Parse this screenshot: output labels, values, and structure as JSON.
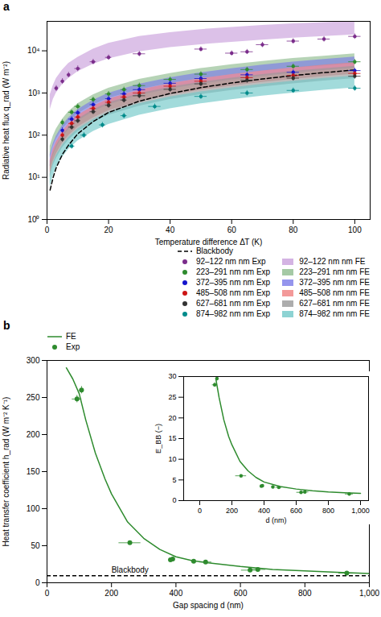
{
  "chart_data": [
    {
      "type": "scatter",
      "title": "a",
      "xlabel": "Temperature difference ΔΤ (K)",
      "ylabel": "Radiative heat flux q_rad (W m⁻²)",
      "log": "y",
      "grid": false,
      "legend": "lower right",
      "xlim": [
        0,
        105
      ],
      "xticks": [
        0,
        20,
        40,
        60,
        80,
        100
      ],
      "ylim": [
        1,
        50000
      ],
      "yticks": [
        {
          "value": 1,
          "label": "10⁰"
        },
        {
          "value": 10,
          "label": "10¹"
        },
        {
          "value": 100,
          "label": "10²"
        },
        {
          "value": 1000,
          "label": "10³"
        },
        {
          "value": 10000,
          "label": "10⁴"
        }
      ],
      "series": [
        {
          "name": "Blackbody",
          "type": "line",
          "line_style": "dashed",
          "color": "#000000",
          "x": [
            1,
            2,
            3,
            5,
            7,
            10,
            15,
            20,
            30,
            40,
            50,
            60,
            70,
            80,
            90,
            100
          ],
          "values": [
            5,
            10,
            17,
            35,
            58,
            108,
            210,
            345,
            640,
            975,
            1340,
            1730,
            2150,
            2590,
            3040,
            3520
          ]
        },
        {
          "name": "92–122 nm nm Exp",
          "type": "scatter",
          "marker": "circle",
          "color": "#7B2D8B",
          "x": [
            3,
            5,
            7,
            10,
            15,
            20,
            30,
            50,
            60,
            65,
            70,
            80,
            90,
            100
          ],
          "values": [
            1300,
            1900,
            2700,
            3800,
            5500,
            7000,
            8500,
            11000,
            8800,
            9500,
            14000,
            17000,
            19000,
            22000
          ],
          "xerr": [
            0.5,
            0.5,
            0.5,
            1,
            1,
            1,
            2,
            2,
            2,
            2,
            2,
            2,
            2,
            2
          ],
          "yerr": [
            200,
            300,
            400,
            600,
            800,
            1000,
            1200,
            1500,
            1200,
            1300,
            2000,
            2500,
            2800,
            3200
          ]
        },
        {
          "name": "92–122 nm nm FE",
          "type": "area",
          "color": "#C9A0DC",
          "x": [
            1,
            2,
            3,
            5,
            7,
            10,
            15,
            20,
            30,
            40,
            50,
            60,
            70,
            80,
            90,
            100
          ],
          "lower": [
            400,
            700,
            1000,
            1600,
            2200,
            3200,
            4800,
            6500,
            9500,
            12000,
            14000,
            16000,
            18000,
            20000,
            22000,
            24000
          ],
          "upper": [
            900,
            1500,
            2200,
            3500,
            5000,
            7000,
            11000,
            15000,
            22000,
            27000,
            32000,
            36000,
            40000,
            44000,
            47000,
            50000
          ]
        },
        {
          "name": "223–291 nm nm Exp",
          "type": "scatter",
          "marker": "circle",
          "color": "#2E8B2E",
          "x": [
            5,
            8,
            10,
            15,
            20,
            25,
            30,
            40,
            50,
            65,
            80,
            100
          ],
          "values": [
            200,
            350,
            480,
            700,
            950,
            1200,
            1500,
            2100,
            2800,
            3600,
            4300,
            5500
          ],
          "xerr": [
            0.5,
            1,
            1,
            1,
            1,
            1,
            2,
            2,
            2,
            2,
            2,
            2
          ],
          "yerr": [
            30,
            50,
            70,
            100,
            140,
            180,
            220,
            300,
            400,
            500,
            600,
            800
          ]
        },
        {
          "name": "223–291 nm nm FE",
          "type": "area",
          "color": "#8FBC8F",
          "x": [
            1,
            2,
            3,
            5,
            7,
            10,
            15,
            20,
            30,
            40,
            50,
            60,
            70,
            80,
            90,
            100
          ],
          "lower": [
            30,
            55,
            80,
            140,
            200,
            320,
            520,
            750,
            1200,
            1700,
            2200,
            2700,
            3300,
            3900,
            4400,
            5000
          ],
          "upper": [
            55,
            95,
            140,
            240,
            360,
            560,
            900,
            1300,
            2100,
            2900,
            3800,
            4700,
            5600,
            6600,
            7500,
            8500
          ]
        },
        {
          "name": "372–395 nm nm Exp",
          "type": "scatter",
          "marker": "circle",
          "color": "#1515CC",
          "x": [
            5,
            8,
            10,
            15,
            20,
            25,
            30,
            40,
            50,
            65,
            80,
            100
          ],
          "values": [
            130,
            240,
            340,
            530,
            730,
            950,
            1200,
            1700,
            2200,
            2700,
            3100,
            3400
          ],
          "xerr": [
            0.5,
            1,
            1,
            1,
            1,
            1,
            2,
            2,
            2,
            2,
            2,
            2
          ],
          "yerr": [
            20,
            35,
            50,
            75,
            100,
            140,
            170,
            240,
            310,
            380,
            440,
            490
          ]
        },
        {
          "name": "372–395 nm nm FE",
          "type": "area",
          "color": "#7B7BE8",
          "x": [
            1,
            2,
            3,
            5,
            7,
            10,
            15,
            20,
            30,
            40,
            50,
            60,
            70,
            80,
            90,
            100
          ],
          "lower": [
            18,
            33,
            50,
            90,
            135,
            215,
            360,
            530,
            870,
            1240,
            1630,
            2040,
            2480,
            2950,
            3400,
            3900
          ],
          "upper": [
            35,
            63,
            95,
            170,
            255,
            405,
            670,
            990,
            1620,
            2300,
            3020,
            3780,
            4580,
            5430,
            6280,
            7150
          ]
        },
        {
          "name": "485–508 nm nm Exp",
          "type": "scatter",
          "marker": "circle",
          "color": "#CC1515",
          "x": [
            5,
            8,
            10,
            15,
            20,
            25,
            30,
            40,
            50,
            65,
            80,
            100
          ],
          "values": [
            100,
            190,
            270,
            430,
            600,
            800,
            1000,
            1450,
            1900,
            2300,
            2600,
            2900
          ],
          "xerr": [
            0.5,
            1,
            1,
            1,
            1,
            1,
            2,
            2,
            2,
            2,
            2,
            2
          ],
          "yerr": [
            15,
            28,
            40,
            63,
            87,
            115,
            145,
            210,
            275,
            330,
            375,
            420
          ]
        },
        {
          "name": "485–508 nm nm FE",
          "type": "area",
          "color": "#F08080",
          "x": [
            1,
            2,
            3,
            5,
            7,
            10,
            15,
            20,
            30,
            40,
            50,
            60,
            70,
            80,
            90,
            100
          ],
          "lower": [
            13,
            24,
            36,
            65,
            97,
            155,
            258,
            380,
            624,
            890,
            1170,
            1465,
            1780,
            2115,
            2450,
            2800
          ],
          "upper": [
            25,
            46,
            69,
            123,
            184,
            293,
            487,
            715,
            1172,
            1670,
            2195,
            2748,
            3338,
            3965,
            4593,
            5250
          ]
        },
        {
          "name": "627–681 nm nm Exp",
          "type": "scatter",
          "marker": "circle",
          "color": "#333333",
          "x": [
            5,
            8,
            10,
            15,
            20,
            25,
            30,
            40,
            50,
            65,
            80,
            100
          ],
          "values": [
            80,
            155,
            220,
            360,
            510,
            680,
            860,
            1220,
            1650,
            2000,
            2250,
            2500
          ],
          "xerr": [
            0.5,
            1,
            1,
            1,
            1,
            1,
            2,
            2,
            2,
            2,
            2,
            2
          ],
          "yerr": [
            12,
            23,
            32,
            52,
            74,
            98,
            124,
            176,
            238,
            290,
            325,
            360
          ]
        },
        {
          "name": "627–681 nm nm FE",
          "type": "area",
          "color": "#999999",
          "x": [
            1,
            2,
            3,
            5,
            7,
            10,
            15,
            20,
            30,
            40,
            50,
            60,
            70,
            80,
            90,
            100
          ],
          "lower": [
            10,
            19,
            28,
            50,
            76,
            121,
            202,
            298,
            490,
            698,
            918,
            1149,
            1395,
            1657,
            1920,
            2195
          ],
          "upper": [
            20,
            37,
            56,
            100,
            150,
            240,
            399,
            588,
            964,
            1373,
            1805,
            2259,
            2742,
            3257,
            3772,
            4310
          ]
        },
        {
          "name": "874–982 nm nm Exp",
          "type": "scatter",
          "marker": "circle",
          "color": "#008B8B",
          "x": [
            8,
            12,
            18,
            25,
            35,
            50,
            65,
            80,
            100
          ],
          "values": [
            55,
            100,
            175,
            290,
            480,
            830,
            1000,
            1150,
            1300
          ],
          "xerr": [
            1,
            1,
            1,
            1,
            2,
            2,
            2,
            2,
            2
          ],
          "yerr": [
            8,
            15,
            26,
            42,
            70,
            120,
            145,
            167,
            189
          ]
        },
        {
          "name": "874–982 nm nm FE",
          "type": "area",
          "color": "#70C8C8",
          "x": [
            1,
            2,
            3,
            5,
            7,
            10,
            15,
            20,
            30,
            40,
            50,
            60,
            70,
            80,
            90,
            100
          ],
          "lower": [
            6,
            11,
            17,
            30,
            46,
            73,
            122,
            180,
            296,
            422,
            555,
            695,
            844,
            1003,
            1163,
            1330
          ],
          "upper": [
            12,
            22,
            33,
            58,
            88,
            141,
            234,
            345,
            566,
            806,
            1060,
            1326,
            1610,
            1913,
            2218,
            2535
          ]
        }
      ]
    },
    {
      "type": "line",
      "title": "b",
      "xlabel": "Gap spacing d (nm)",
      "ylabel": "Heat transfer coefficient h_rad (W m⁻² K⁻¹)",
      "grid": false,
      "legend": "upper left",
      "xlim": [
        0,
        1000
      ],
      "xticks": [
        0,
        200,
        400,
        600,
        800,
        {
          "value": 1000,
          "label": "1,000"
        }
      ],
      "ylim": [
        0,
        300
      ],
      "yticks": [
        0,
        50,
        100,
        150,
        200,
        250,
        300
      ],
      "hlines": [
        {
          "y": 9.5,
          "color": "#000000",
          "line_style": "dashed"
        }
      ],
      "annotations": [
        {
          "text": "Blackbody",
          "x": 200,
          "y": 14
        }
      ],
      "series": [
        {
          "name": "FE",
          "type": "line",
          "color": "#2E8B2E",
          "x": [
            60,
            80,
            100,
            120,
            150,
            180,
            200,
            250,
            300,
            350,
            400,
            450,
            500,
            600,
            700,
            800,
            900,
            1000
          ],
          "values": [
            290,
            275,
            255,
            220,
            175,
            140,
            120,
            82,
            60,
            45,
            35,
            30,
            27,
            22,
            18,
            16,
            14,
            12.5
          ]
        },
        {
          "name": "Exp",
          "type": "scatter",
          "marker": "circle",
          "color": "#2E8B2E",
          "x": [
            93,
            107,
            257,
            383,
            390,
            455,
            492,
            630,
            654,
            930
          ],
          "values": [
            248,
            260,
            54,
            31,
            32,
            29,
            28,
            17,
            18,
            13
          ],
          "xerr": [
            15,
            7,
            34,
            6,
            5,
            7,
            19,
            27,
            24,
            25
          ],
          "yerr": [
            5,
            5,
            2,
            1,
            1,
            1,
            1,
            1,
            1,
            1
          ]
        }
      ]
    },
    {
      "type": "line",
      "xlabel": "d (nm)",
      "ylabel": "E_BB (−)",
      "grid": false,
      "xlim": [
        -100,
        1050
      ],
      "xticks": [
        0,
        200,
        400,
        600,
        800,
        {
          "value": 1000,
          "label": "1,000"
        }
      ],
      "ylim": [
        0,
        30
      ],
      "yticks": [
        0,
        5,
        10,
        15,
        20,
        25,
        30
      ],
      "series": [
        {
          "type": "line",
          "color": "#2E8B2E",
          "x": [
            100,
            120,
            150,
            180,
            200,
            250,
            300,
            350,
            400,
            500,
            600,
            700,
            800,
            900,
            1000
          ],
          "values": [
            29.5,
            25.0,
            19.5,
            15.5,
            13.5,
            9.5,
            7.2,
            5.6,
            4.5,
            3.4,
            2.8,
            2.4,
            2.1,
            1.9,
            1.75
          ]
        },
        {
          "type": "scatter",
          "marker": "circle",
          "color": "#2E8B2E",
          "x": [
            93,
            107,
            257,
            383,
            390,
            455,
            492,
            630,
            654,
            930
          ],
          "values": [
            28.0,
            29.5,
            6.0,
            3.5,
            3.6,
            3.3,
            3.2,
            2.0,
            2.1,
            1.6
          ],
          "xerr": [
            15,
            7,
            34,
            6,
            5,
            7,
            19,
            27,
            24,
            25
          ],
          "yerr": [
            0.5,
            0.5,
            0.2,
            0.15,
            0.15,
            0.15,
            0.15,
            0.1,
            0.1,
            0.1
          ]
        }
      ]
    }
  ]
}
